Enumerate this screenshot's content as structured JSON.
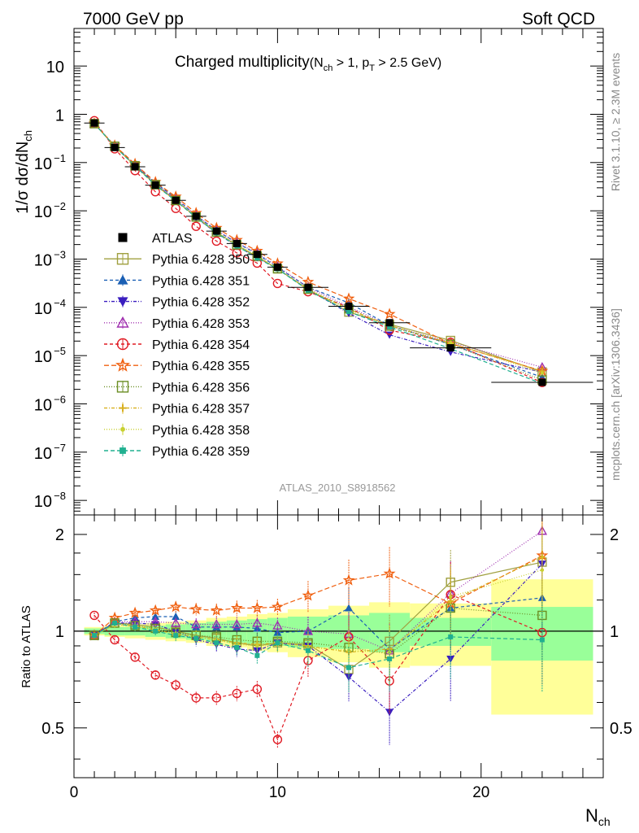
{
  "header": {
    "energy_label": "7000 GeV pp",
    "category_label": "Soft QCD"
  },
  "side_labels": {
    "rivet": "Rivet 3.1.10, ≥ 2.3M events",
    "mcplots": "mcplots.cern.ch [arXiv:1306.3436]"
  },
  "chart_data": {
    "type": "scatter",
    "title": "Charged multiplicity(N_ch > 1, p_T > 2.5 GeV)",
    "title_parts": {
      "main": "Charged multiplicity",
      "open": "(N",
      "sub1": "ch",
      "mid": " > 1, p",
      "sub2": "T",
      "close": " > 2.5 GeV)"
    },
    "analysis_id": "ATLAS_2010_S8918562",
    "xlabel": "N_ch",
    "xlabel_parts": {
      "main": "N",
      "sub": "ch"
    },
    "ylabel": "1/σ dσ/dN_ch",
    "ylabel_parts": {
      "main": "1/σ dσ/dN",
      "sub": "ch"
    },
    "ratio_ylabel": "Ratio to ATLAS",
    "xlim": [
      0,
      26
    ],
    "ylim": [
      5e-09,
      60
    ],
    "ratio_ylim": [
      0.35,
      2.3
    ],
    "x_ticks": [
      0,
      10,
      20
    ],
    "y_ticks": [
      {
        "value": 1e-08,
        "mant": "10",
        "exp": "−8"
      },
      {
        "value": 1e-07,
        "mant": "10",
        "exp": "−7"
      },
      {
        "value": 1e-06,
        "mant": "10",
        "exp": "−6"
      },
      {
        "value": 1e-05,
        "mant": "10",
        "exp": "−5"
      },
      {
        "value": 0.0001,
        "mant": "10",
        "exp": "−4"
      },
      {
        "value": 0.001,
        "mant": "10",
        "exp": "−3"
      },
      {
        "value": 0.01,
        "mant": "10",
        "exp": "−2"
      },
      {
        "value": 0.1,
        "mant": "10",
        "exp": "−1"
      },
      {
        "value": 1,
        "mant": "1",
        "exp": ""
      },
      {
        "value": 10,
        "mant": "10",
        "exp": ""
      }
    ],
    "ratio_ticks": [
      0.5,
      1,
      2
    ],
    "data": {
      "name": "ATLAS",
      "x": [
        1,
        2,
        3,
        4,
        5,
        6,
        7,
        8,
        9,
        10,
        11.5,
        13.5,
        15.5,
        18.5,
        23
      ],
      "xerr": [
        0.5,
        0.5,
        0.5,
        0.5,
        0.5,
        0.5,
        0.5,
        0.5,
        0.5,
        0.5,
        1,
        1,
        1,
        2,
        2.5
      ],
      "y": [
        0.66,
        0.205,
        0.082,
        0.034,
        0.0165,
        0.0077,
        0.0038,
        0.0021,
        0.00125,
        0.00068,
        0.00026,
        0.000105,
        4.8e-05,
        1.45e-05,
        2.8e-06
      ],
      "band_inner": [
        0.02,
        0.03,
        0.03,
        0.04,
        0.05,
        0.06,
        0.07,
        0.08,
        0.09,
        0.1,
        0.11,
        0.12,
        0.14,
        0.1,
        0.19
      ],
      "band_outer": [
        0.03,
        0.04,
        0.05,
        0.06,
        0.07,
        0.08,
        0.1,
        0.11,
        0.13,
        0.14,
        0.17,
        0.2,
        0.23,
        0.22,
        0.45
      ]
    },
    "series": [
      {
        "name": "Pythia 6.428 350",
        "color": "#a0a040",
        "dash": "",
        "marker": "square-open",
        "x": [
          1,
          2,
          3,
          4,
          5,
          6,
          7,
          8,
          9,
          10,
          11.5,
          13.5,
          15.5,
          18.5,
          23
        ],
        "ratio": [
          0.97,
          1.06,
          1.05,
          1.03,
          1.0,
          0.97,
          0.95,
          0.92,
          0.9,
          0.92,
          0.91,
          0.76,
          0.93,
          1.42,
          1.64
        ]
      },
      {
        "name": "Pythia 6.428 351",
        "color": "#1a5fb4",
        "dash": "4,3",
        "marker": "triangle-up-filled",
        "x": [
          1,
          2,
          3,
          4,
          5,
          6,
          7,
          8,
          9,
          10,
          11.5,
          13.5,
          15.5,
          18.5,
          23
        ],
        "ratio": [
          0.97,
          1.07,
          1.1,
          1.11,
          1.11,
          1.03,
          1.03,
          1.03,
          1.02,
          0.99,
          1.0,
          1.18,
          0.88,
          1.18,
          1.27
        ]
      },
      {
        "name": "Pythia 6.428 352",
        "color": "#3a1ebf",
        "dash": "4,2,1,2",
        "marker": "triangle-down-filled",
        "x": [
          1,
          2,
          3,
          4,
          5,
          6,
          7,
          8,
          9,
          10,
          11.5,
          13.5,
          15.5,
          18.5,
          23
        ],
        "ratio": [
          0.98,
          1.06,
          1.06,
          1.05,
          1.0,
          0.94,
          0.91,
          0.88,
          0.87,
          0.92,
          0.9,
          0.72,
          0.56,
          0.82,
          1.62
        ]
      },
      {
        "name": "Pythia 6.428 353",
        "color": "#a030b0",
        "dash": "1,2",
        "marker": "triangle-up-open",
        "x": [
          1,
          2,
          3,
          4,
          5,
          6,
          7,
          8,
          9,
          10,
          11.5,
          13.5,
          15.5,
          18.5,
          23
        ],
        "ratio": [
          0.97,
          1.07,
          1.07,
          1.07,
          1.06,
          1.05,
          1.05,
          1.05,
          1.06,
          1.04,
          1.0,
          0.98,
          0.87,
          1.31,
          2.05
        ]
      },
      {
        "name": "Pythia 6.428 354",
        "color": "#e01b24",
        "dash": "4,3",
        "marker": "circle-open",
        "x": [
          1,
          2,
          3,
          4,
          5,
          6,
          7,
          8,
          9,
          10,
          11.5,
          13.5,
          15.5,
          18.5,
          23
        ],
        "ratio": [
          1.12,
          0.94,
          0.83,
          0.73,
          0.68,
          0.62,
          0.62,
          0.64,
          0.66,
          0.46,
          0.81,
          0.96,
          0.7,
          1.3,
          0.99
        ]
      },
      {
        "name": "Pythia 6.428 355",
        "color": "#f06010",
        "dash": "6,3",
        "marker": "star-open",
        "x": [
          1,
          2,
          3,
          4,
          5,
          6,
          7,
          8,
          9,
          10,
          11.5,
          13.5,
          15.5,
          18.5,
          23
        ],
        "ratio": [
          0.97,
          1.1,
          1.14,
          1.16,
          1.19,
          1.17,
          1.16,
          1.18,
          1.18,
          1.19,
          1.29,
          1.44,
          1.51,
          1.22,
          1.72
        ]
      },
      {
        "name": "Pythia 6.428 356",
        "color": "#6b8e23",
        "dash": "1,2",
        "marker": "square-open",
        "x": [
          1,
          2,
          3,
          4,
          5,
          6,
          7,
          8,
          9,
          10,
          11.5,
          13.5,
          15.5,
          18.5,
          23
        ],
        "ratio": [
          0.97,
          1.06,
          1.04,
          1.02,
          0.99,
          0.97,
          0.96,
          0.94,
          0.93,
          0.93,
          0.92,
          0.89,
          0.85,
          1.18,
          1.12
        ]
      },
      {
        "name": "Pythia 6.428 357",
        "color": "#d8b020",
        "dash": "4,2,1,2",
        "marker": "cross-small",
        "x": [
          1,
          2,
          3,
          4,
          5,
          6,
          7,
          8,
          9,
          10,
          11.5,
          13.5,
          15.5,
          18.5,
          23
        ],
        "ratio": [
          0.97,
          1.05,
          1.04,
          1.01,
          0.98,
          0.96,
          0.94,
          0.92,
          0.91,
          0.92,
          0.9,
          0.86,
          0.88,
          1.24,
          1.7
        ]
      },
      {
        "name": "Pythia 6.428 358",
        "color": "#c8d030",
        "dash": "1,2",
        "marker": "dot-small",
        "x": [
          1,
          2,
          3,
          4,
          5,
          6,
          7,
          8,
          9,
          10,
          11.5,
          13.5,
          15.5,
          18.5,
          23
        ],
        "ratio": [
          0.97,
          1.05,
          1.03,
          1.01,
          0.98,
          0.96,
          0.94,
          0.91,
          0.9,
          0.91,
          0.89,
          0.87,
          0.86,
          1.28,
          1.55
        ]
      },
      {
        "name": "Pythia 6.428 359",
        "color": "#20b090",
        "dash": "5,3",
        "marker": "square-filled-small",
        "x": [
          1,
          2,
          3,
          4,
          5,
          6,
          7,
          8,
          9,
          10,
          11.5,
          13.5,
          15.5,
          18.5,
          23
        ],
        "ratio": [
          0.97,
          1.06,
          1.03,
          1.0,
          0.97,
          0.95,
          0.92,
          0.89,
          0.84,
          0.92,
          0.87,
          0.77,
          0.82,
          0.96,
          0.94
        ]
      }
    ]
  }
}
